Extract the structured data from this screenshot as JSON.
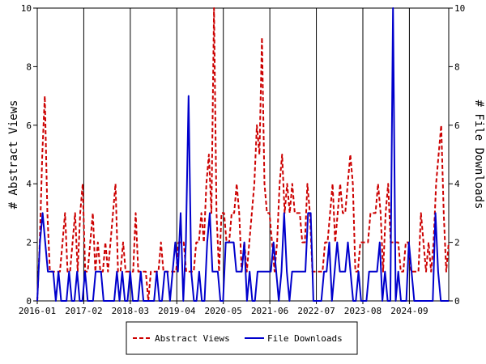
{
  "chart_data": {
    "type": "line",
    "ylabel_left": "# Abstract Views",
    "ylabel_right": "# File Downloads",
    "ylim": [
      0,
      10
    ],
    "y_ticks": [
      0,
      2,
      4,
      6,
      8,
      10
    ],
    "x_tick_labels": [
      "2016-01",
      "2017-02",
      "2018-03",
      "2019-04",
      "2020-05",
      "2021-06",
      "2022-07",
      "2023-08",
      "2024-09"
    ],
    "x_range_months": [
      "2016-01",
      "2025-08"
    ],
    "legend_position": "bottom-center",
    "grid": "vertical",
    "series": [
      {
        "name": "Abstract Views",
        "color": "#cc0000",
        "dash": "dashed",
        "values": [
          0,
          2,
          5,
          7,
          3,
          1,
          1,
          1,
          1,
          1,
          2,
          3,
          1,
          1,
          2,
          3,
          1,
          3,
          4,
          1,
          1,
          2,
          3,
          1,
          2,
          1,
          1,
          2,
          1,
          2,
          3,
          4,
          1,
          1,
          2,
          1,
          1,
          1,
          1,
          3,
          1,
          1,
          1,
          1,
          0,
          1,
          1,
          1,
          1,
          2,
          1,
          1,
          1,
          1,
          1,
          1,
          2,
          2,
          2,
          1,
          1,
          1,
          1,
          2,
          2,
          3,
          2,
          4,
          5,
          3,
          10,
          3,
          1,
          3,
          3,
          2,
          2,
          3,
          3,
          4,
          3,
          1,
          2,
          1,
          2,
          3,
          4,
          6,
          5,
          9,
          4,
          3,
          3,
          2,
          1,
          2,
          4,
          5,
          3,
          4,
          3,
          4,
          3,
          3,
          3,
          2,
          2,
          4,
          3,
          1,
          1,
          1,
          1,
          1,
          2,
          2,
          3,
          4,
          2,
          3,
          4,
          3,
          3,
          4,
          5,
          4,
          1,
          1,
          2,
          2,
          2,
          2,
          3,
          3,
          3,
          4,
          3,
          1,
          3,
          4,
          2,
          2,
          2,
          2,
          1,
          1,
          2,
          2,
          1,
          1,
          1,
          1,
          3,
          2,
          1,
          2,
          1,
          2,
          4,
          5,
          6,
          3,
          1,
          2
        ]
      },
      {
        "name": "File Downloads",
        "color": "#0000cc",
        "dash": "solid",
        "values": [
          0,
          2,
          3,
          2,
          1,
          1,
          1,
          0,
          1,
          0,
          0,
          0,
          1,
          0,
          0,
          1,
          0,
          0,
          1,
          0,
          0,
          0,
          1,
          1,
          1,
          0,
          0,
          0,
          0,
          0,
          1,
          0,
          1,
          0,
          0,
          1,
          0,
          0,
          0,
          1,
          0,
          0,
          0,
          0,
          0,
          1,
          0,
          0,
          1,
          1,
          0,
          1,
          2,
          1,
          3,
          0,
          2,
          7,
          1,
          0,
          0,
          1,
          0,
          0,
          2,
          3,
          1,
          1,
          1,
          0,
          0,
          2,
          2,
          2,
          2,
          1,
          1,
          1,
          2,
          0,
          1,
          0,
          0,
          1,
          1,
          1,
          1,
          1,
          1,
          2,
          1,
          0,
          1,
          3,
          1,
          0,
          1,
          1,
          1,
          1,
          1,
          1,
          3,
          3,
          0,
          0,
          0,
          0,
          1,
          1,
          2,
          0,
          1,
          2,
          1,
          1,
          1,
          2,
          1,
          0,
          0,
          1,
          0,
          0,
          0,
          1,
          1,
          1,
          1,
          2,
          0,
          1,
          0,
          0,
          10,
          0,
          1,
          0,
          0,
          0,
          2,
          1,
          0,
          0,
          0,
          0,
          0,
          0,
          0,
          0,
          3,
          1,
          0,
          0,
          0,
          0
        ]
      }
    ]
  }
}
